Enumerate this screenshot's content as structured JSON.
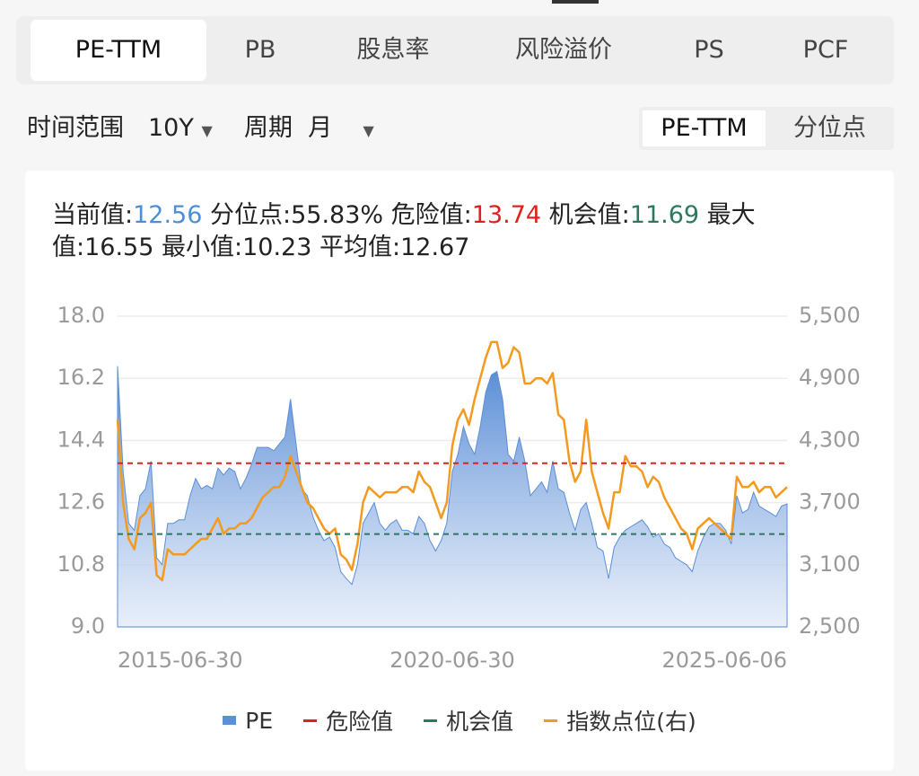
{
  "tabs": {
    "items": [
      "PE-TTM",
      "PB",
      "股息率",
      "风险溢价",
      "PS",
      "PCF"
    ],
    "active": 0
  },
  "controls": {
    "range_label": "时间范围",
    "range_value": "10Y",
    "period_label": "周期",
    "period_value": "月",
    "toggle": [
      "PE-TTM",
      "分位点"
    ],
    "toggle_active": 0
  },
  "stats": [
    {
      "label": "当前值:",
      "value": "12.56",
      "color": "#4a8fd8"
    },
    {
      "label": "分位点:",
      "value": "55.83%"
    },
    {
      "label": "危险值:",
      "value": "13.74",
      "color": "#e0201f"
    },
    {
      "label": "机会值:",
      "value": "11.69",
      "color": "#2a7a5e"
    },
    {
      "label": "最大值:",
      "value": "16.55"
    },
    {
      "label": "最小值:",
      "value": "10.23"
    },
    {
      "label": "平均值:",
      "value": "12.67"
    }
  ],
  "chart_data": {
    "type": "line",
    "categories": [
      "2015-06-30",
      null,
      null,
      null,
      null,
      null,
      null,
      null,
      null,
      null,
      null,
      null,
      null,
      null,
      null,
      null,
      null,
      null,
      null,
      null,
      null,
      null,
      null,
      null,
      null,
      null,
      null,
      null,
      null,
      null,
      null,
      null,
      null,
      null,
      null,
      null,
      null,
      null,
      null,
      null,
      null,
      null,
      null,
      null,
      null,
      null,
      null,
      null,
      null,
      null,
      null,
      null,
      null,
      null,
      null,
      null,
      null,
      null,
      null,
      null,
      "2020-06-30",
      null,
      null,
      null,
      null,
      null,
      null,
      null,
      null,
      null,
      null,
      null,
      null,
      null,
      null,
      null,
      null,
      null,
      null,
      null,
      null,
      null,
      null,
      null,
      null,
      null,
      null,
      null,
      null,
      null,
      null,
      null,
      null,
      null,
      null,
      null,
      null,
      null,
      null,
      null,
      null,
      null,
      null,
      null,
      null,
      null,
      null,
      null,
      null,
      null,
      null,
      null,
      null,
      null,
      null,
      null,
      null,
      null,
      null,
      null,
      "2025-06-06"
    ],
    "series": [
      {
        "name": "PE",
        "color": "#5b8fd6",
        "area": true,
        "values": [
          16.55,
          13.5,
          12.0,
          11.8,
          12.8,
          13.0,
          13.8,
          11.0,
          10.8,
          12.0,
          12.0,
          12.1,
          12.1,
          12.8,
          13.3,
          13.0,
          13.1,
          13.0,
          13.6,
          13.4,
          13.6,
          13.5,
          13.0,
          13.3,
          13.7,
          14.2,
          14.2,
          14.2,
          14.1,
          14.3,
          14.5,
          15.6,
          14.3,
          13.0,
          12.8,
          12.2,
          11.8,
          11.5,
          11.6,
          11.3,
          10.6,
          10.4,
          10.23,
          10.8,
          12.0,
          12.3,
          12.6,
          12.0,
          11.8,
          12.0,
          12.1,
          11.8,
          11.8,
          11.7,
          12.2,
          12.0,
          11.5,
          11.2,
          11.5,
          12.0,
          13.5,
          14.0,
          14.8,
          14.3,
          14.0,
          14.8,
          15.8,
          16.3,
          16.4,
          15.6,
          14.0,
          13.8,
          14.5,
          13.8,
          12.8,
          13.0,
          13.2,
          12.9,
          13.8,
          13.0,
          12.9,
          12.3,
          11.8,
          12.4,
          12.6,
          12.0,
          11.3,
          11.2,
          10.4,
          11.3,
          11.6,
          11.8,
          11.9,
          12.0,
          12.1,
          11.9,
          11.6,
          11.7,
          11.4,
          11.3,
          11.0,
          10.9,
          10.8,
          10.6,
          11.2,
          11.6,
          11.9,
          12.0,
          12.0,
          11.8,
          11.4,
          12.8,
          12.3,
          12.4,
          12.9,
          12.5,
          12.4,
          12.3,
          12.2,
          12.5,
          12.56
        ]
      },
      {
        "name": "指数点位(右)",
        "color": "#f39a1f",
        "axis": "y2",
        "values": [
          4500,
          3700,
          3350,
          3250,
          3550,
          3600,
          3700,
          3000,
          2950,
          3250,
          3200,
          3200,
          3200,
          3250,
          3300,
          3350,
          3350,
          3450,
          3550,
          3400,
          3450,
          3450,
          3500,
          3500,
          3550,
          3650,
          3750,
          3800,
          3850,
          3850,
          3950,
          4150,
          4000,
          3850,
          3700,
          3650,
          3550,
          3450,
          3400,
          3450,
          3200,
          3150,
          3050,
          3300,
          3700,
          3850,
          3800,
          3750,
          3800,
          3800,
          3800,
          3850,
          3850,
          3800,
          4000,
          3900,
          3850,
          3700,
          3550,
          3700,
          4250,
          4500,
          4600,
          4450,
          4700,
          4900,
          5100,
          5250,
          5250,
          5000,
          5050,
          5200,
          5150,
          4850,
          4850,
          4900,
          4900,
          4850,
          4950,
          4550,
          4500,
          4100,
          3900,
          4000,
          4500,
          4000,
          3800,
          3600,
          3450,
          3800,
          3800,
          4150,
          4050,
          4050,
          4000,
          3850,
          3950,
          3900,
          3750,
          3650,
          3550,
          3450,
          3400,
          3250,
          3450,
          3500,
          3550,
          3500,
          3450,
          3400,
          3350,
          3950,
          3850,
          3850,
          3900,
          3800,
          3850,
          3850,
          3750,
          3800,
          3850
        ]
      }
    ],
    "hlines": [
      {
        "name": "危险值",
        "value": 13.74,
        "color": "#e0201f"
      },
      {
        "name": "机会值",
        "value": 11.69,
        "color": "#2a7a5e"
      }
    ],
    "ylim": [
      9,
      18
    ],
    "yticks": [
      {
        "value": 9,
        "label": "9.0"
      },
      {
        "value": 10.8,
        "label": "10.8"
      },
      {
        "value": 12.6,
        "label": "12.6"
      },
      {
        "value": 14.4,
        "label": "14.4"
      },
      {
        "value": 16.2,
        "label": "16.2"
      },
      {
        "value": 18,
        "label": "18.0"
      }
    ],
    "y2lim": [
      2500,
      5500
    ],
    "y2ticks": [
      {
        "value": 2500,
        "label": "2,500"
      },
      {
        "value": 3100,
        "label": "3,100"
      },
      {
        "value": 3700,
        "label": "3,700"
      },
      {
        "value": 4300,
        "label": "4,300"
      },
      {
        "value": 4900,
        "label": "4,900"
      },
      {
        "value": 5500,
        "label": "5,500"
      }
    ],
    "grid": true,
    "legend": "bottom"
  }
}
